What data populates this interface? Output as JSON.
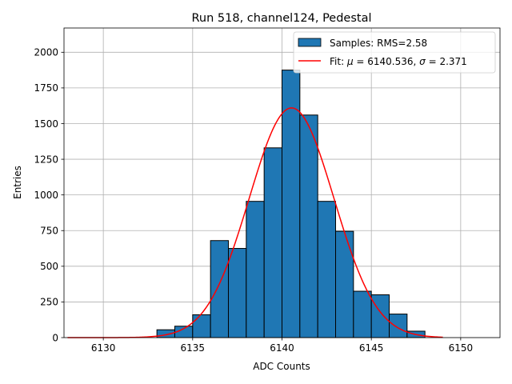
{
  "chart_data": {
    "type": "bar",
    "title": "Run 518, channel124, Pedestal",
    "xlabel": "ADC Counts",
    "ylabel": "Entries",
    "xlim": [
      6127.8,
      6152.2
    ],
    "ylim": [
      0,
      2170
    ],
    "xticks": [
      6130,
      6135,
      6140,
      6145,
      6150
    ],
    "yticks": [
      0,
      250,
      500,
      750,
      1000,
      1250,
      1500,
      1750,
      2000
    ],
    "grid": true,
    "legend_position": "top-right",
    "histogram": {
      "name": "Samples: RMS=2.58",
      "color": "#1f77b4",
      "bin_edges": [
        6133,
        6134,
        6135,
        6136,
        6137,
        6138,
        6139,
        6140,
        6141,
        6142,
        6143,
        6144,
        6145,
        6146,
        6147,
        6148
      ],
      "counts": [
        55,
        80,
        160,
        680,
        625,
        955,
        1330,
        1875,
        1560,
        955,
        745,
        325,
        300,
        165,
        45
      ]
    },
    "fit": {
      "name": "Fit: μ = 6140.536, σ = 2.371",
      "legend_prefix": "Fit: ",
      "mu_symbol": "μ",
      "mu_text": " = 6140.536, ",
      "sigma_symbol": "σ",
      "sigma_text": " = 2.371",
      "color": "#ff0000",
      "mu": 6140.536,
      "sigma": 2.371,
      "amplitude": 1610,
      "x_range": [
        6128,
        6149
      ]
    }
  }
}
